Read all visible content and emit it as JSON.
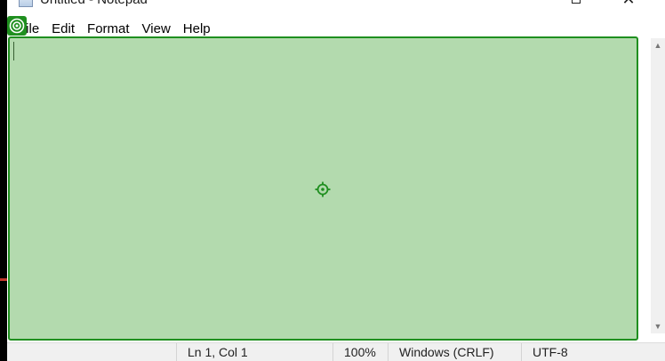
{
  "window": {
    "title": "Untitled - Notepad",
    "maximize_icon": "maximize-icon",
    "close_icon": "close-icon"
  },
  "menu": {
    "file": "File",
    "edit": "Edit",
    "format": "Format",
    "view": "View",
    "help": "Help"
  },
  "editor": {
    "content": ""
  },
  "status": {
    "position": "Ln 1, Col 1",
    "zoom": "100%",
    "line_ending": "Windows (CRLF)",
    "encoding": "UTF-8"
  },
  "overlay": {
    "color": "#1f8f1f",
    "corner_icon": "target-icon",
    "center_icon": "crosshair-icon"
  }
}
